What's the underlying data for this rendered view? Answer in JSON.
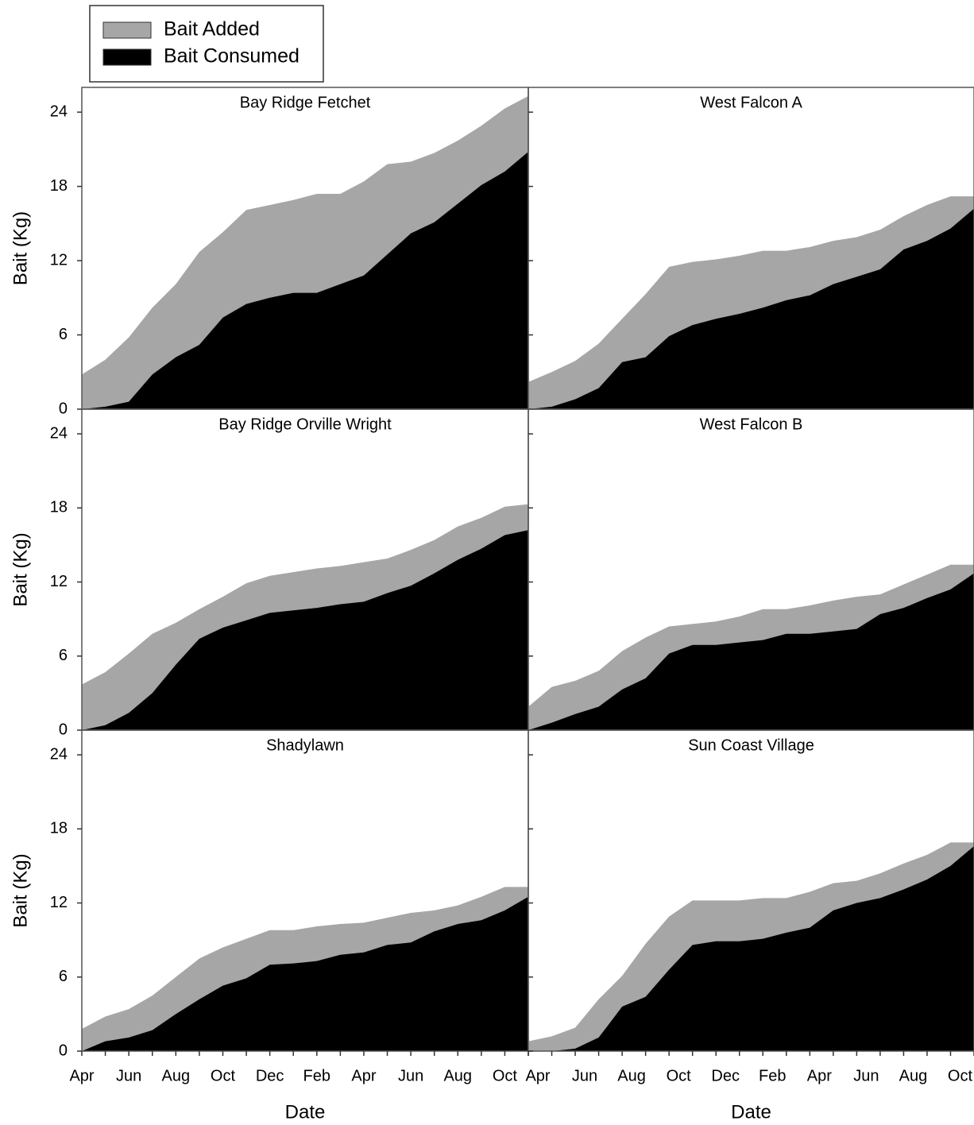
{
  "chart_data": [
    {
      "type": "area",
      "title": "Bay Ridge Fetchet",
      "y_label": "Bait (Kg)",
      "ylim": [
        0,
        26
      ],
      "yticks": [
        0,
        6,
        12,
        18,
        24
      ],
      "series": [
        {
          "name": "Bait Added",
          "color": "#a6a6a6",
          "values": [
            2.8,
            4.0,
            5.8,
            8.2,
            10.1,
            12.7,
            14.3,
            16.1,
            16.5,
            16.9,
            17.4,
            17.4,
            18.4,
            19.8,
            20.0,
            20.7,
            21.7,
            22.9,
            24.3,
            25.3
          ]
        },
        {
          "name": "Bait Consumed",
          "color": "#000000",
          "values": [
            0,
            0.2,
            0.6,
            2.8,
            4.2,
            5.2,
            7.4,
            8.5,
            9.0,
            9.4,
            9.4,
            10.1,
            10.8,
            12.5,
            14.2,
            15.1,
            16.6,
            18.1,
            19.2,
            20.8
          ]
        }
      ]
    },
    {
      "type": "area",
      "title": "West Falcon A",
      "ylim": [
        0,
        26
      ],
      "yticks": [
        0,
        6,
        12,
        18,
        24
      ],
      "series": [
        {
          "name": "Bait Added",
          "color": "#a6a6a6",
          "values": [
            2.2,
            3.0,
            3.9,
            5.3,
            7.3,
            9.3,
            11.5,
            11.9,
            12.1,
            12.4,
            12.8,
            12.8,
            13.1,
            13.6,
            13.9,
            14.5,
            15.6,
            16.5,
            17.2,
            17.2
          ]
        },
        {
          "name": "Bait Consumed",
          "color": "#000000",
          "values": [
            0,
            0.2,
            0.8,
            1.7,
            3.8,
            4.2,
            5.9,
            6.8,
            7.3,
            7.7,
            8.2,
            8.8,
            9.2,
            10.1,
            10.7,
            11.3,
            12.9,
            13.6,
            14.6,
            16.2
          ]
        }
      ]
    },
    {
      "type": "area",
      "title": "Bay Ridge Orville Wright",
      "y_label": "Bait (Kg)",
      "ylim": [
        0,
        26
      ],
      "yticks": [
        0,
        6,
        12,
        18,
        24
      ],
      "series": [
        {
          "name": "Bait Added",
          "color": "#a6a6a6",
          "values": [
            3.7,
            4.7,
            6.2,
            7.8,
            8.7,
            9.8,
            10.8,
            11.9,
            12.5,
            12.8,
            13.1,
            13.3,
            13.6,
            13.9,
            14.6,
            15.4,
            16.5,
            17.2,
            18.1,
            18.3
          ]
        },
        {
          "name": "Bait Consumed",
          "color": "#000000",
          "values": [
            0,
            0.4,
            1.4,
            3.0,
            5.3,
            7.4,
            8.3,
            8.9,
            9.5,
            9.7,
            9.9,
            10.2,
            10.4,
            11.1,
            11.7,
            12.7,
            13.8,
            14.7,
            15.8,
            16.2
          ]
        }
      ]
    },
    {
      "type": "area",
      "title": "West Falcon B",
      "ylim": [
        0,
        26
      ],
      "yticks": [
        0,
        6,
        12,
        18,
        24
      ],
      "series": [
        {
          "name": "Bait Added",
          "color": "#a6a6a6",
          "values": [
            1.9,
            3.5,
            4.0,
            4.8,
            6.4,
            7.5,
            8.4,
            8.6,
            8.8,
            9.2,
            9.8,
            9.8,
            10.1,
            10.5,
            10.8,
            11.0,
            11.8,
            12.6,
            13.4,
            13.4
          ]
        },
        {
          "name": "Bait Consumed",
          "color": "#000000",
          "values": [
            0,
            0.6,
            1.3,
            1.9,
            3.3,
            4.2,
            6.2,
            6.9,
            6.9,
            7.1,
            7.3,
            7.8,
            7.8,
            8.0,
            8.2,
            9.4,
            9.9,
            10.7,
            11.4,
            12.7
          ]
        }
      ]
    },
    {
      "type": "area",
      "title": "Shadylawn",
      "y_label": "Bait (Kg)",
      "x_label": "Date",
      "ylim": [
        0,
        26
      ],
      "yticks": [
        0,
        6,
        12,
        18,
        24
      ],
      "categories": [
        "Apr",
        null,
        "Jun",
        null,
        "Aug",
        null,
        "Oct",
        null,
        "Dec",
        null,
        "Feb",
        null,
        "Apr",
        null,
        "Jun",
        null,
        "Aug",
        null,
        "Oct",
        null
      ],
      "series": [
        {
          "name": "Bait Added",
          "color": "#a6a6a6",
          "values": [
            1.8,
            2.8,
            3.4,
            4.5,
            6.0,
            7.5,
            8.4,
            9.1,
            9.8,
            9.8,
            10.1,
            10.3,
            10.4,
            10.8,
            11.2,
            11.4,
            11.8,
            12.5,
            13.3,
            13.3
          ]
        },
        {
          "name": "Bait Consumed",
          "color": "#000000",
          "values": [
            0,
            0.8,
            1.1,
            1.7,
            3.0,
            4.2,
            5.3,
            5.9,
            7.0,
            7.1,
            7.3,
            7.8,
            8.0,
            8.6,
            8.8,
            9.7,
            10.3,
            10.6,
            11.4,
            12.5
          ]
        }
      ]
    },
    {
      "type": "area",
      "title": "Sun Coast Village",
      "x_label": "Date",
      "ylim": [
        0,
        26
      ],
      "yticks": [
        0,
        6,
        12,
        18,
        24
      ],
      "categories": [
        "Apr",
        null,
        "Jun",
        null,
        "Aug",
        null,
        "Oct",
        null,
        "Dec",
        null,
        "Feb",
        null,
        "Apr",
        null,
        "Jun",
        null,
        "Aug",
        null,
        "Oct",
        null
      ],
      "series": [
        {
          "name": "Bait Added",
          "color": "#a6a6a6",
          "values": [
            0.8,
            1.2,
            1.9,
            4.2,
            6.1,
            8.7,
            10.9,
            12.2,
            12.2,
            12.2,
            12.4,
            12.4,
            12.9,
            13.6,
            13.8,
            14.4,
            15.2,
            15.9,
            16.9,
            16.9
          ]
        },
        {
          "name": "Bait Consumed",
          "color": "#000000",
          "values": [
            0,
            0,
            0.2,
            1.1,
            3.6,
            4.4,
            6.6,
            8.6,
            8.9,
            8.9,
            9.1,
            9.6,
            10.0,
            11.4,
            12.0,
            12.4,
            13.1,
            13.9,
            15.0,
            16.6
          ]
        }
      ]
    }
  ]
}
